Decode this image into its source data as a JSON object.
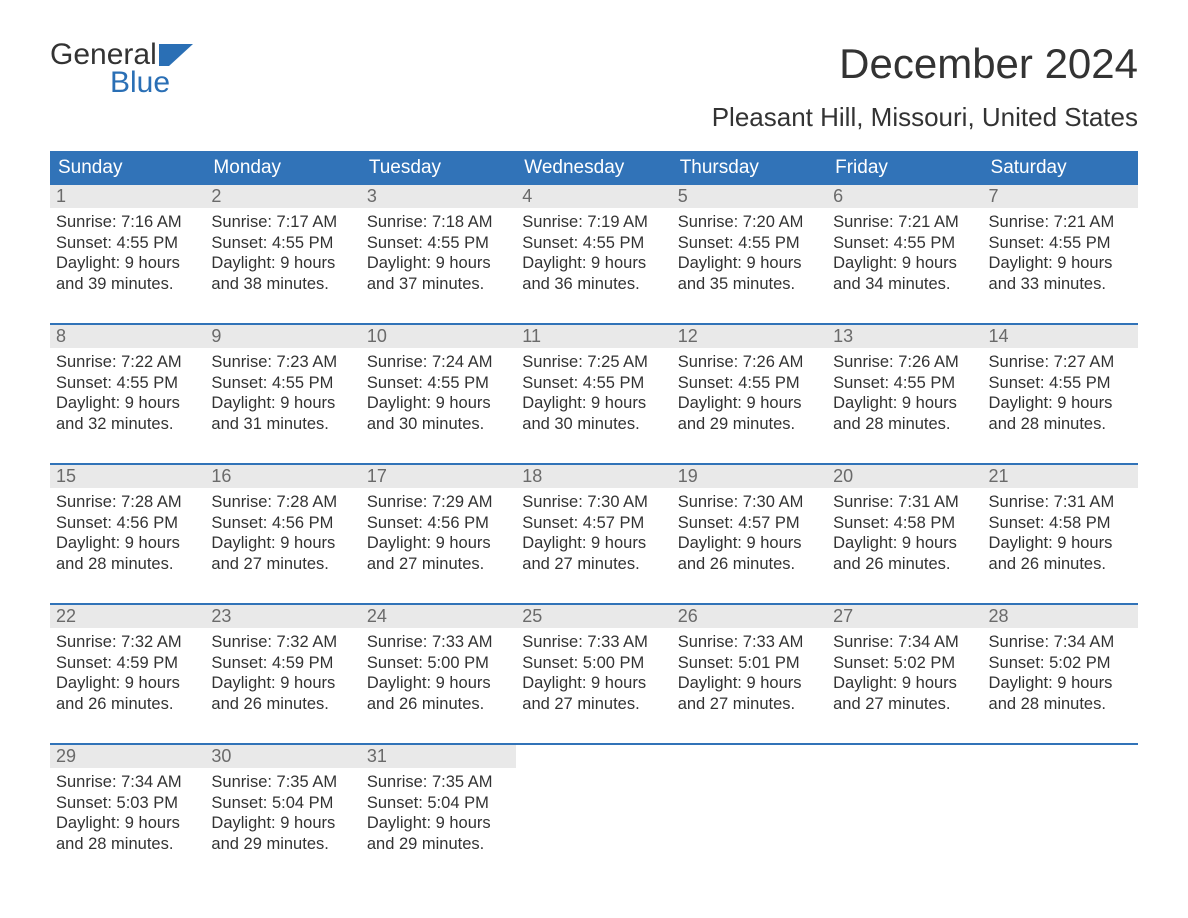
{
  "branding": {
    "logo_word1": "General",
    "logo_word2": "Blue",
    "logo_word1_color": "#333333",
    "logo_word2_color": "#2a6fb5",
    "flag_color": "#2a6fb5"
  },
  "title": "December 2024",
  "subtitle": "Pleasant Hill, Missouri, United States",
  "colors": {
    "header_bg": "#3173b8",
    "header_text": "#ffffff",
    "daynum_bg": "#e9e9e9",
    "daynum_text": "#6a6a6a",
    "body_text": "#333333",
    "week_divider": "#3173b8",
    "page_bg": "#ffffff"
  },
  "fonts": {
    "title_size_pt": 32,
    "subtitle_size_pt": 20,
    "header_size_pt": 14,
    "daynum_size_pt": 14,
    "body_size_pt": 12
  },
  "day_headers": [
    "Sunday",
    "Monday",
    "Tuesday",
    "Wednesday",
    "Thursday",
    "Friday",
    "Saturday"
  ],
  "weeks": [
    [
      {
        "n": "1",
        "sr": "Sunrise: 7:16 AM",
        "ss": "Sunset: 4:55 PM",
        "d1": "Daylight: 9 hours",
        "d2": "and 39 minutes."
      },
      {
        "n": "2",
        "sr": "Sunrise: 7:17 AM",
        "ss": "Sunset: 4:55 PM",
        "d1": "Daylight: 9 hours",
        "d2": "and 38 minutes."
      },
      {
        "n": "3",
        "sr": "Sunrise: 7:18 AM",
        "ss": "Sunset: 4:55 PM",
        "d1": "Daylight: 9 hours",
        "d2": "and 37 minutes."
      },
      {
        "n": "4",
        "sr": "Sunrise: 7:19 AM",
        "ss": "Sunset: 4:55 PM",
        "d1": "Daylight: 9 hours",
        "d2": "and 36 minutes."
      },
      {
        "n": "5",
        "sr": "Sunrise: 7:20 AM",
        "ss": "Sunset: 4:55 PM",
        "d1": "Daylight: 9 hours",
        "d2": "and 35 minutes."
      },
      {
        "n": "6",
        "sr": "Sunrise: 7:21 AM",
        "ss": "Sunset: 4:55 PM",
        "d1": "Daylight: 9 hours",
        "d2": "and 34 minutes."
      },
      {
        "n": "7",
        "sr": "Sunrise: 7:21 AM",
        "ss": "Sunset: 4:55 PM",
        "d1": "Daylight: 9 hours",
        "d2": "and 33 minutes."
      }
    ],
    [
      {
        "n": "8",
        "sr": "Sunrise: 7:22 AM",
        "ss": "Sunset: 4:55 PM",
        "d1": "Daylight: 9 hours",
        "d2": "and 32 minutes."
      },
      {
        "n": "9",
        "sr": "Sunrise: 7:23 AM",
        "ss": "Sunset: 4:55 PM",
        "d1": "Daylight: 9 hours",
        "d2": "and 31 minutes."
      },
      {
        "n": "10",
        "sr": "Sunrise: 7:24 AM",
        "ss": "Sunset: 4:55 PM",
        "d1": "Daylight: 9 hours",
        "d2": "and 30 minutes."
      },
      {
        "n": "11",
        "sr": "Sunrise: 7:25 AM",
        "ss": "Sunset: 4:55 PM",
        "d1": "Daylight: 9 hours",
        "d2": "and 30 minutes."
      },
      {
        "n": "12",
        "sr": "Sunrise: 7:26 AM",
        "ss": "Sunset: 4:55 PM",
        "d1": "Daylight: 9 hours",
        "d2": "and 29 minutes."
      },
      {
        "n": "13",
        "sr": "Sunrise: 7:26 AM",
        "ss": "Sunset: 4:55 PM",
        "d1": "Daylight: 9 hours",
        "d2": "and 28 minutes."
      },
      {
        "n": "14",
        "sr": "Sunrise: 7:27 AM",
        "ss": "Sunset: 4:55 PM",
        "d1": "Daylight: 9 hours",
        "d2": "and 28 minutes."
      }
    ],
    [
      {
        "n": "15",
        "sr": "Sunrise: 7:28 AM",
        "ss": "Sunset: 4:56 PM",
        "d1": "Daylight: 9 hours",
        "d2": "and 28 minutes."
      },
      {
        "n": "16",
        "sr": "Sunrise: 7:28 AM",
        "ss": "Sunset: 4:56 PM",
        "d1": "Daylight: 9 hours",
        "d2": "and 27 minutes."
      },
      {
        "n": "17",
        "sr": "Sunrise: 7:29 AM",
        "ss": "Sunset: 4:56 PM",
        "d1": "Daylight: 9 hours",
        "d2": "and 27 minutes."
      },
      {
        "n": "18",
        "sr": "Sunrise: 7:30 AM",
        "ss": "Sunset: 4:57 PM",
        "d1": "Daylight: 9 hours",
        "d2": "and 27 minutes."
      },
      {
        "n": "19",
        "sr": "Sunrise: 7:30 AM",
        "ss": "Sunset: 4:57 PM",
        "d1": "Daylight: 9 hours",
        "d2": "and 26 minutes."
      },
      {
        "n": "20",
        "sr": "Sunrise: 7:31 AM",
        "ss": "Sunset: 4:58 PM",
        "d1": "Daylight: 9 hours",
        "d2": "and 26 minutes."
      },
      {
        "n": "21",
        "sr": "Sunrise: 7:31 AM",
        "ss": "Sunset: 4:58 PM",
        "d1": "Daylight: 9 hours",
        "d2": "and 26 minutes."
      }
    ],
    [
      {
        "n": "22",
        "sr": "Sunrise: 7:32 AM",
        "ss": "Sunset: 4:59 PM",
        "d1": "Daylight: 9 hours",
        "d2": "and 26 minutes."
      },
      {
        "n": "23",
        "sr": "Sunrise: 7:32 AM",
        "ss": "Sunset: 4:59 PM",
        "d1": "Daylight: 9 hours",
        "d2": "and 26 minutes."
      },
      {
        "n": "24",
        "sr": "Sunrise: 7:33 AM",
        "ss": "Sunset: 5:00 PM",
        "d1": "Daylight: 9 hours",
        "d2": "and 26 minutes."
      },
      {
        "n": "25",
        "sr": "Sunrise: 7:33 AM",
        "ss": "Sunset: 5:00 PM",
        "d1": "Daylight: 9 hours",
        "d2": "and 27 minutes."
      },
      {
        "n": "26",
        "sr": "Sunrise: 7:33 AM",
        "ss": "Sunset: 5:01 PM",
        "d1": "Daylight: 9 hours",
        "d2": "and 27 minutes."
      },
      {
        "n": "27",
        "sr": "Sunrise: 7:34 AM",
        "ss": "Sunset: 5:02 PM",
        "d1": "Daylight: 9 hours",
        "d2": "and 27 minutes."
      },
      {
        "n": "28",
        "sr": "Sunrise: 7:34 AM",
        "ss": "Sunset: 5:02 PM",
        "d1": "Daylight: 9 hours",
        "d2": "and 28 minutes."
      }
    ],
    [
      {
        "n": "29",
        "sr": "Sunrise: 7:34 AM",
        "ss": "Sunset: 5:03 PM",
        "d1": "Daylight: 9 hours",
        "d2": "and 28 minutes."
      },
      {
        "n": "30",
        "sr": "Sunrise: 7:35 AM",
        "ss": "Sunset: 5:04 PM",
        "d1": "Daylight: 9 hours",
        "d2": "and 29 minutes."
      },
      {
        "n": "31",
        "sr": "Sunrise: 7:35 AM",
        "ss": "Sunset: 5:04 PM",
        "d1": "Daylight: 9 hours",
        "d2": "and 29 minutes."
      },
      null,
      null,
      null,
      null
    ]
  ]
}
